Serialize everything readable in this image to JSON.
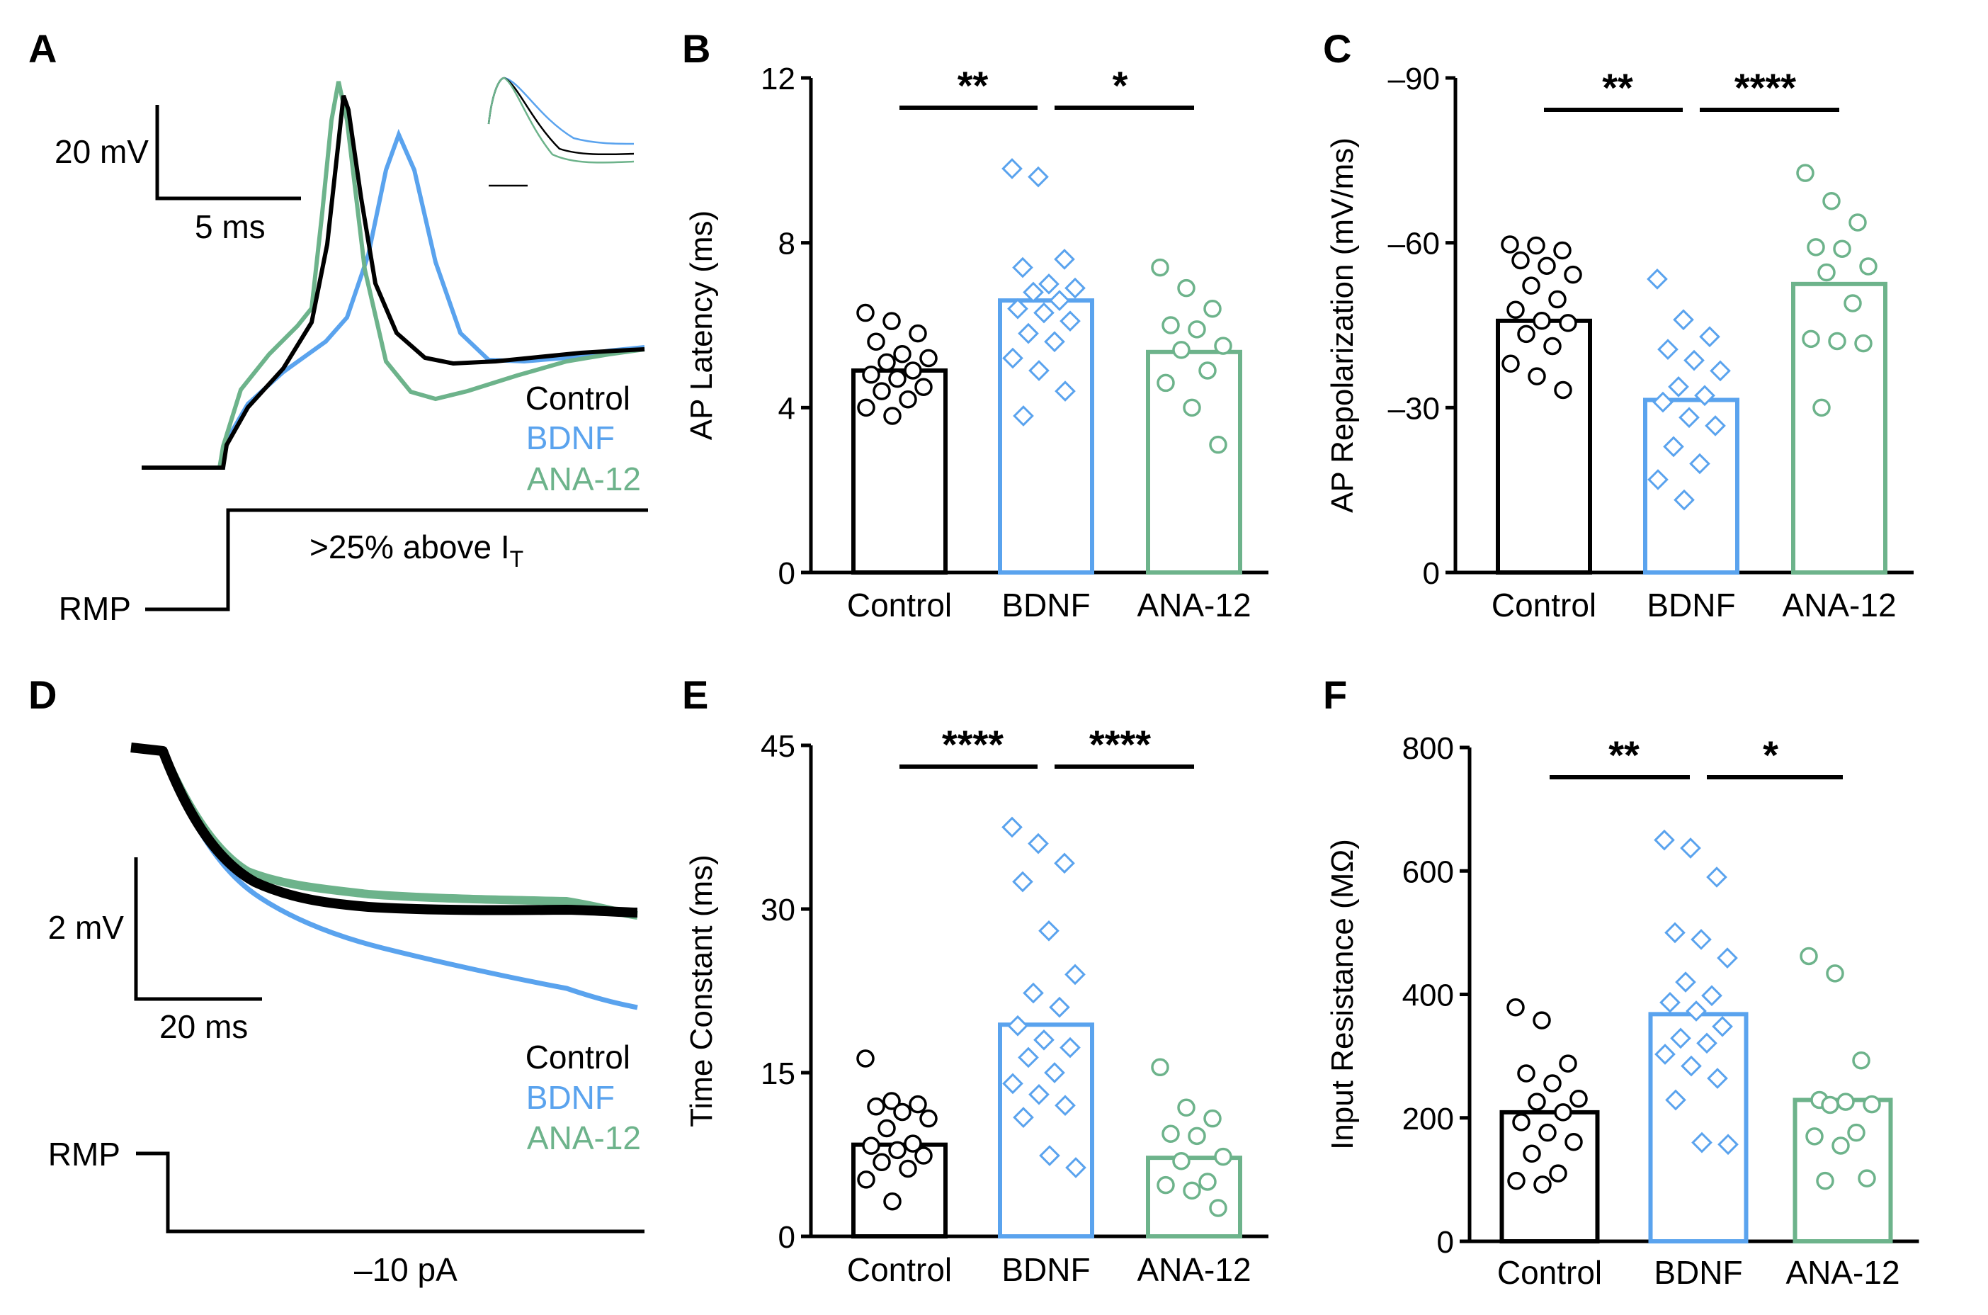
{
  "colors": {
    "control": "#000000",
    "bdnf": "#5aa3ee",
    "ana12": "#6db38b"
  },
  "legend": {
    "control": "Control",
    "bdnf": "BDNF",
    "ana12": "ANA-12"
  },
  "panel_a": {
    "label": "A",
    "scale_voltage": "20 mV",
    "scale_time": "5 ms",
    "stim_label": ">25% above I",
    "stim_sub": "T",
    "rmp_label": "RMP"
  },
  "panel_d": {
    "label": "D",
    "scale_voltage": "2 mV",
    "scale_time": "20 ms",
    "stim_label": "–10 pA",
    "rmp_label": "RMP"
  },
  "chart_data": [
    {
      "panel": "B",
      "type": "bar",
      "title": "",
      "ylabel": "AP Latency (ms)",
      "xlabel": "",
      "categories": [
        "Control",
        "BDNF",
        "ANA-12"
      ],
      "ylim": [
        0,
        12
      ],
      "yticks": [
        0,
        4,
        8,
        12
      ],
      "ytick_labels": [
        "0",
        "4",
        "8",
        "12"
      ],
      "means": [
        4.9,
        6.6,
        5.35
      ],
      "points": [
        [
          6.3,
          6.1,
          5.8,
          5.6,
          5.3,
          5.2,
          5.1,
          4.9,
          4.8,
          4.7,
          4.5,
          4.4,
          4.2,
          4.0,
          3.8
        ],
        [
          9.8,
          9.6,
          7.6,
          7.4,
          7.0,
          6.9,
          6.8,
          6.6,
          6.4,
          6.3,
          6.1,
          5.8,
          5.6,
          5.2,
          4.9,
          4.4,
          3.8
        ],
        [
          7.4,
          6.9,
          6.4,
          6.0,
          5.9,
          5.5,
          5.4,
          4.9,
          4.6,
          4.0,
          3.1
        ]
      ],
      "significance": [
        {
          "between": [
            0,
            1
          ],
          "label": "**"
        },
        {
          "between": [
            1,
            2
          ],
          "label": "*"
        }
      ]
    },
    {
      "panel": "C",
      "type": "bar",
      "title": "",
      "ylabel": "AP Repolarization (mV/ms)",
      "xlabel": "",
      "categories": [
        "Control",
        "BDNF",
        "ANA-12"
      ],
      "ylim": [
        0,
        -90
      ],
      "yticks": [
        0,
        -30,
        -60,
        -90
      ],
      "ytick_labels": [
        "0",
        "–30",
        "–60",
        "–90"
      ],
      "means": [
        -45.8,
        -31.4,
        -52.5
      ],
      "points": [
        [
          -59.7,
          -59.5,
          -58.6,
          -56.8,
          -55.8,
          -54.2,
          -52.2,
          -49.7,
          -47.8,
          -45.8,
          -45.4,
          -43.4,
          -41.2,
          -38.0,
          -35.7,
          -33.2
        ],
        [
          -53.4,
          -46.0,
          -42.9,
          -40.6,
          -38.6,
          -36.7,
          -33.8,
          -32.2,
          -31.0,
          -28.2,
          -26.7,
          -22.9,
          -19.8,
          -16.9,
          -13.2
        ],
        [
          -72.7,
          -67.6,
          -63.7,
          -59.2,
          -58.9,
          -55.7,
          -54.6,
          -49.0,
          -42.5,
          -42.1,
          -41.7,
          -30.0
        ]
      ],
      "significance": [
        {
          "between": [
            0,
            1
          ],
          "label": "**"
        },
        {
          "between": [
            1,
            2
          ],
          "label": "****"
        }
      ]
    },
    {
      "panel": "E",
      "type": "bar",
      "title": "",
      "ylabel": "Time Constant (ms)",
      "xlabel": "",
      "categories": [
        "Control",
        "BDNF",
        "ANA-12"
      ],
      "ylim": [
        0,
        45
      ],
      "yticks": [
        0,
        15,
        30,
        45
      ],
      "ytick_labels": [
        "0",
        "15",
        "30",
        "45"
      ],
      "means": [
        8.4,
        19.4,
        7.2
      ],
      "points": [
        [
          16.3,
          12.4,
          12.1,
          11.9,
          11.4,
          10.8,
          9.9,
          8.5,
          8.3,
          7.9,
          7.4,
          6.8,
          6.2,
          5.2,
          3.2
        ],
        [
          37.5,
          36.0,
          34.2,
          32.5,
          28.0,
          24.0,
          22.3,
          21.0,
          19.3,
          18.0,
          17.3,
          16.4,
          15.0,
          14.0,
          13.0,
          12.0,
          10.9,
          7.4,
          6.3
        ],
        [
          15.5,
          11.8,
          10.8,
          9.4,
          9.2,
          7.3,
          6.9,
          5.0,
          4.7,
          4.2,
          2.6
        ]
      ],
      "significance": [
        {
          "between": [
            0,
            1
          ],
          "label": "****"
        },
        {
          "between": [
            1,
            2
          ],
          "label": "****"
        }
      ]
    },
    {
      "panel": "F",
      "type": "bar",
      "title": "",
      "ylabel": "Input Resistance (MΩ)",
      "xlabel": "",
      "categories": [
        "Control",
        "BDNF",
        "ANA-12"
      ],
      "ylim": [
        0,
        800
      ],
      "yticks": [
        0,
        200,
        400,
        600,
        800
      ],
      "ytick_labels": [
        "0",
        "200",
        "400",
        "600",
        "800"
      ],
      "means": [
        209,
        368,
        229
      ],
      "points": [
        [
          379,
          358,
          288,
          272,
          256,
          231,
          226,
          209,
          193,
          176,
          161,
          142,
          110,
          98,
          92
        ],
        [
          650,
          637,
          590,
          500,
          489,
          459,
          420,
          398,
          387,
          373,
          348,
          329,
          321,
          303,
          284,
          264,
          229,
          160,
          157
        ],
        [
          462,
          434,
          293,
          229,
          226,
          222,
          221,
          176,
          170,
          155,
          102,
          98
        ]
      ],
      "significance": [
        {
          "between": [
            0,
            1
          ],
          "label": "**"
        },
        {
          "between": [
            1,
            2
          ],
          "label": "*"
        }
      ]
    }
  ]
}
